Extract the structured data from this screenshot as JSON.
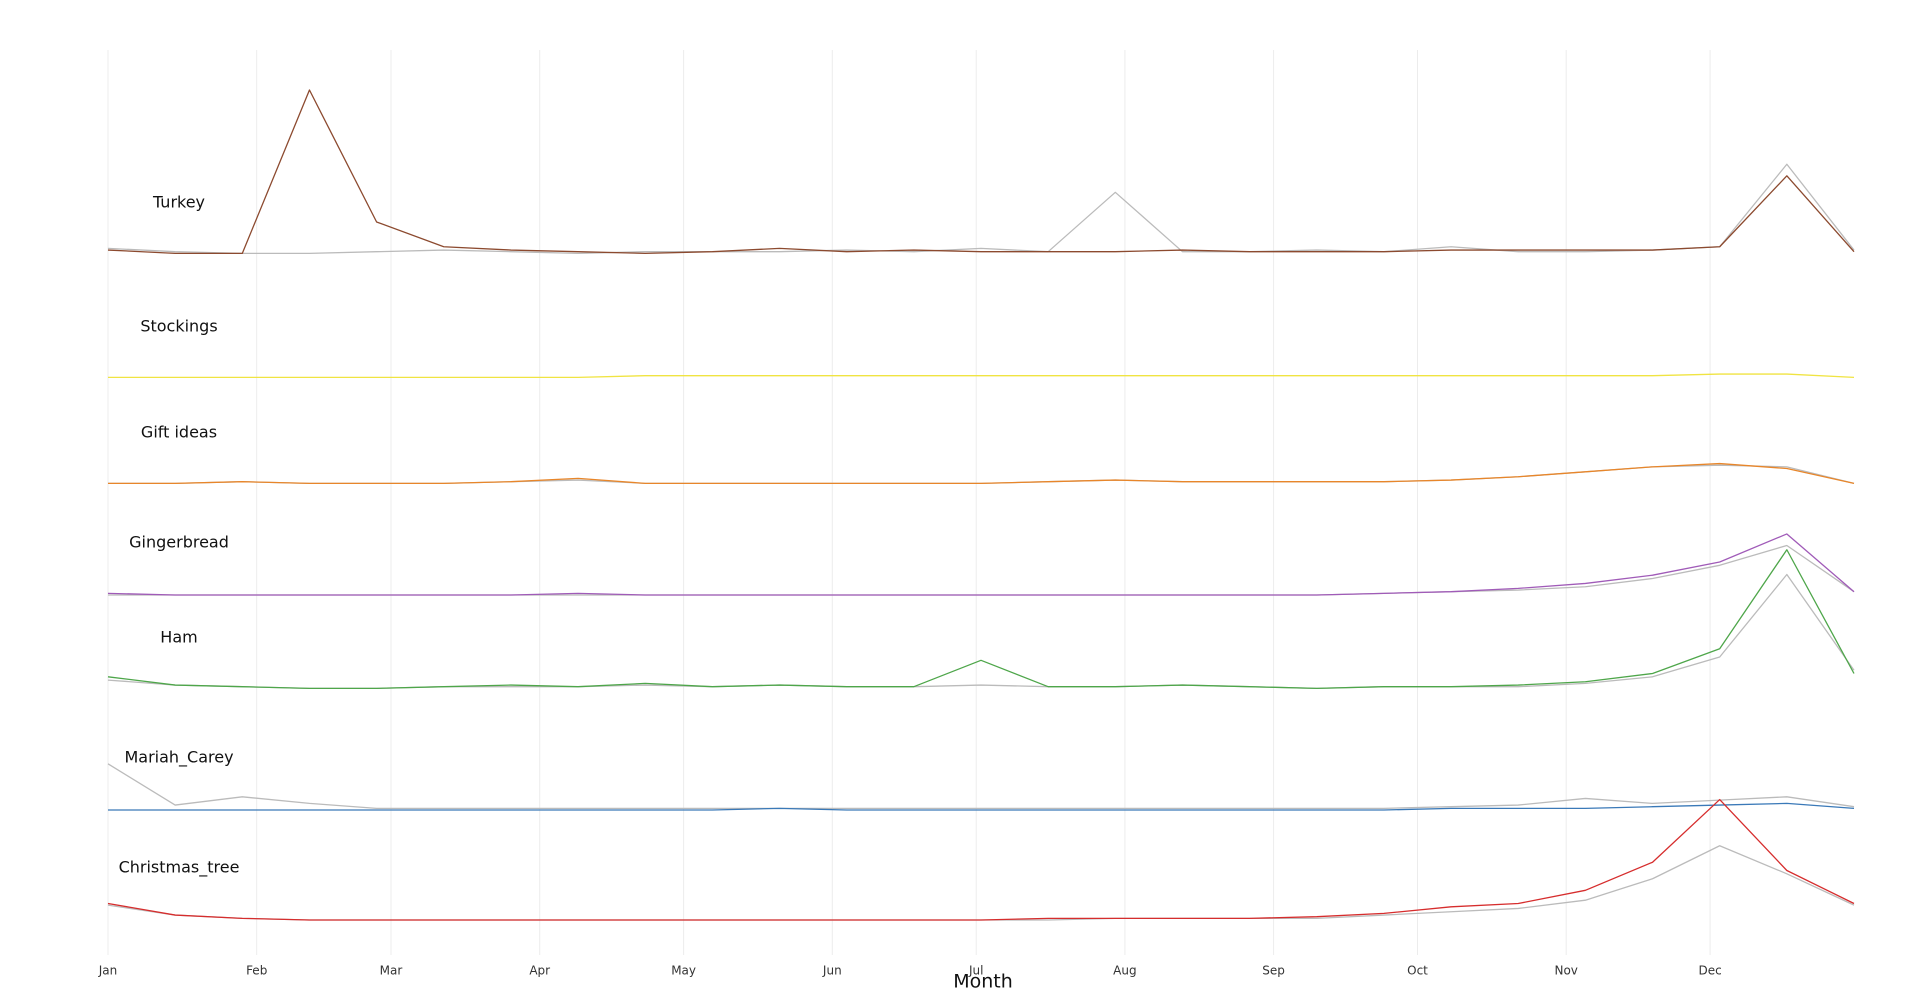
{
  "chart_data": {
    "type": "ridgeline",
    "xlabel": "Month",
    "x": [
      1,
      15,
      29,
      43,
      57,
      71,
      85,
      99,
      113,
      127,
      141,
      155,
      169,
      183,
      197,
      211,
      225,
      239,
      253,
      267,
      281,
      295,
      309,
      323,
      337,
      351,
      365
    ],
    "xlim": [
      1,
      365
    ],
    "xticks": [
      {
        "value": 1,
        "label": "Jan"
      },
      {
        "value": 32,
        "label": "Feb"
      },
      {
        "value": 60,
        "label": "Mar"
      },
      {
        "value": 91,
        "label": "Apr"
      },
      {
        "value": 121,
        "label": "May"
      },
      {
        "value": 152,
        "label": "Jun"
      },
      {
        "value": 182,
        "label": "Jul"
      },
      {
        "value": 213,
        "label": "Aug"
      },
      {
        "value": 244,
        "label": "Sep"
      },
      {
        "value": 274,
        "label": "Oct"
      },
      {
        "value": 305,
        "label": "Nov"
      },
      {
        "value": 335,
        "label": "Dec"
      }
    ],
    "ylim": [
      0,
      100
    ],
    "grid": true,
    "panels": [
      {
        "label": "Turkey",
        "series": [
          {
            "color": "#bbbbbb",
            "values": [
              4,
              2,
              1,
              1,
              2,
              3,
              2,
              1,
              2,
              2,
              2,
              3,
              2,
              4,
              2,
              38,
              2,
              2,
              3,
              2,
              5,
              2,
              2,
              3,
              5,
              55,
              3
            ]
          },
          {
            "color": "#8c4a2f",
            "values": [
              3,
              1,
              1,
              100,
              20,
              5,
              3,
              2,
              1,
              2,
              4,
              2,
              3,
              2,
              2,
              2,
              3,
              2,
              2,
              2,
              3,
              3,
              3,
              3,
              5,
              48,
              2
            ]
          }
        ]
      },
      {
        "label": "Stockings",
        "series": [
          {
            "color": "#f0e442",
            "values": [
              1,
              1,
              1,
              1,
              1,
              1,
              1,
              1,
              2,
              2,
              2,
              2,
              2,
              2,
              2,
              2,
              2,
              2,
              2,
              2,
              2,
              2,
              2,
              2,
              3,
              3,
              1
            ]
          }
        ]
      },
      {
        "label": "Gift ideas",
        "series": [
          {
            "color": "#bbbbbb",
            "values": [
              1,
              1,
              2,
              1,
              1,
              1,
              2,
              3,
              1,
              1,
              1,
              1,
              1,
              1,
              2,
              3,
              2,
              2,
              2,
              2,
              3,
              5,
              8,
              11,
              12,
              11,
              1
            ]
          },
          {
            "color": "#e8862a",
            "values": [
              1,
              1,
              2,
              1,
              1,
              1,
              2,
              4,
              1,
              1,
              1,
              1,
              1,
              1,
              2,
              3,
              2,
              2,
              2,
              2,
              3,
              5,
              8,
              11,
              13,
              10,
              1
            ]
          }
        ]
      },
      {
        "label": "Gingerbread",
        "series": [
          {
            "color": "#bbbbbb",
            "values": [
              0,
              0,
              0,
              0,
              0,
              0,
              0,
              0,
              0,
              0,
              0,
              0,
              0,
              0,
              0,
              0,
              0,
              0,
              0,
              1,
              2,
              3,
              5,
              10,
              18,
              30,
              2
            ]
          },
          {
            "color": "#a05bb8",
            "values": [
              1,
              0,
              0,
              0,
              0,
              0,
              0,
              1,
              0,
              0,
              0,
              0,
              0,
              0,
              0,
              0,
              0,
              0,
              0,
              1,
              2,
              4,
              7,
              12,
              20,
              37,
              2
            ]
          }
        ]
      },
      {
        "label": "Ham",
        "series": [
          {
            "color": "#bbbbbb",
            "values": [
              6,
              3,
              2,
              1,
              1,
              2,
              2,
              2,
              3,
              2,
              3,
              2,
              2,
              3,
              2,
              2,
              3,
              2,
              1,
              2,
              2,
              2,
              4,
              8,
              20,
              70,
              12
            ]
          },
          {
            "color": "#4ea64a",
            "values": [
              8,
              3,
              2,
              1,
              1,
              2,
              3,
              2,
              4,
              2,
              3,
              2,
              2,
              18,
              2,
              2,
              3,
              2,
              1,
              2,
              2,
              3,
              5,
              10,
              25,
              85,
              10
            ]
          }
        ]
      },
      {
        "label": "Mariah_Carey",
        "series": [
          {
            "color": "#bbbbbb",
            "values": [
              28,
              3,
              8,
              4,
              1,
              1,
              1,
              1,
              1,
              1,
              1,
              1,
              1,
              1,
              1,
              1,
              1,
              1,
              1,
              1,
              2,
              3,
              7,
              4,
              6,
              8,
              2
            ]
          },
          {
            "color": "#3a79b8",
            "values": [
              0,
              0,
              0,
              0,
              0,
              0,
              0,
              0,
              0,
              0,
              1,
              0,
              0,
              0,
              0,
              0,
              0,
              0,
              0,
              0,
              1,
              1,
              1,
              2,
              3,
              4,
              1
            ]
          }
        ]
      },
      {
        "label": "Christmas_tree",
        "series": [
          {
            "color": "#bbbbbb",
            "values": [
              9,
              3,
              1,
              0,
              0,
              0,
              0,
              0,
              0,
              0,
              0,
              0,
              0,
              0,
              0,
              1,
              1,
              1,
              1,
              3,
              5,
              7,
              12,
              25,
              45,
              28,
              9
            ]
          },
          {
            "color": "#d62d2d",
            "values": [
              10,
              3,
              1,
              0,
              0,
              0,
              0,
              0,
              0,
              0,
              0,
              0,
              0,
              0,
              1,
              1,
              1,
              1,
              2,
              4,
              8,
              10,
              18,
              35,
              73,
              30,
              10
            ]
          }
        ]
      }
    ]
  }
}
